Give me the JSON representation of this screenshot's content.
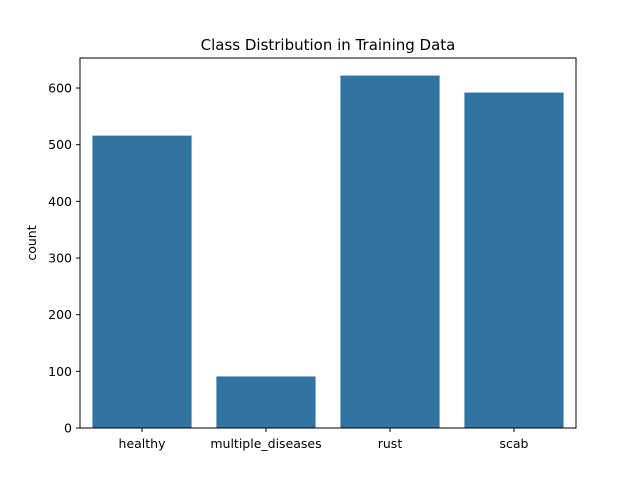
{
  "chart_data": {
    "type": "bar",
    "title": "Class Distribution in Training Data",
    "xlabel": "",
    "ylabel": "count",
    "categories": [
      "healthy",
      "multiple_diseases",
      "rust",
      "scab"
    ],
    "values": [
      516,
      91,
      622,
      592
    ],
    "ylim": [
      0,
      653
    ],
    "yticks": [
      0,
      100,
      200,
      300,
      400,
      500,
      600
    ],
    "bar_color": "#3274a1",
    "grid": false,
    "legend": "none"
  }
}
